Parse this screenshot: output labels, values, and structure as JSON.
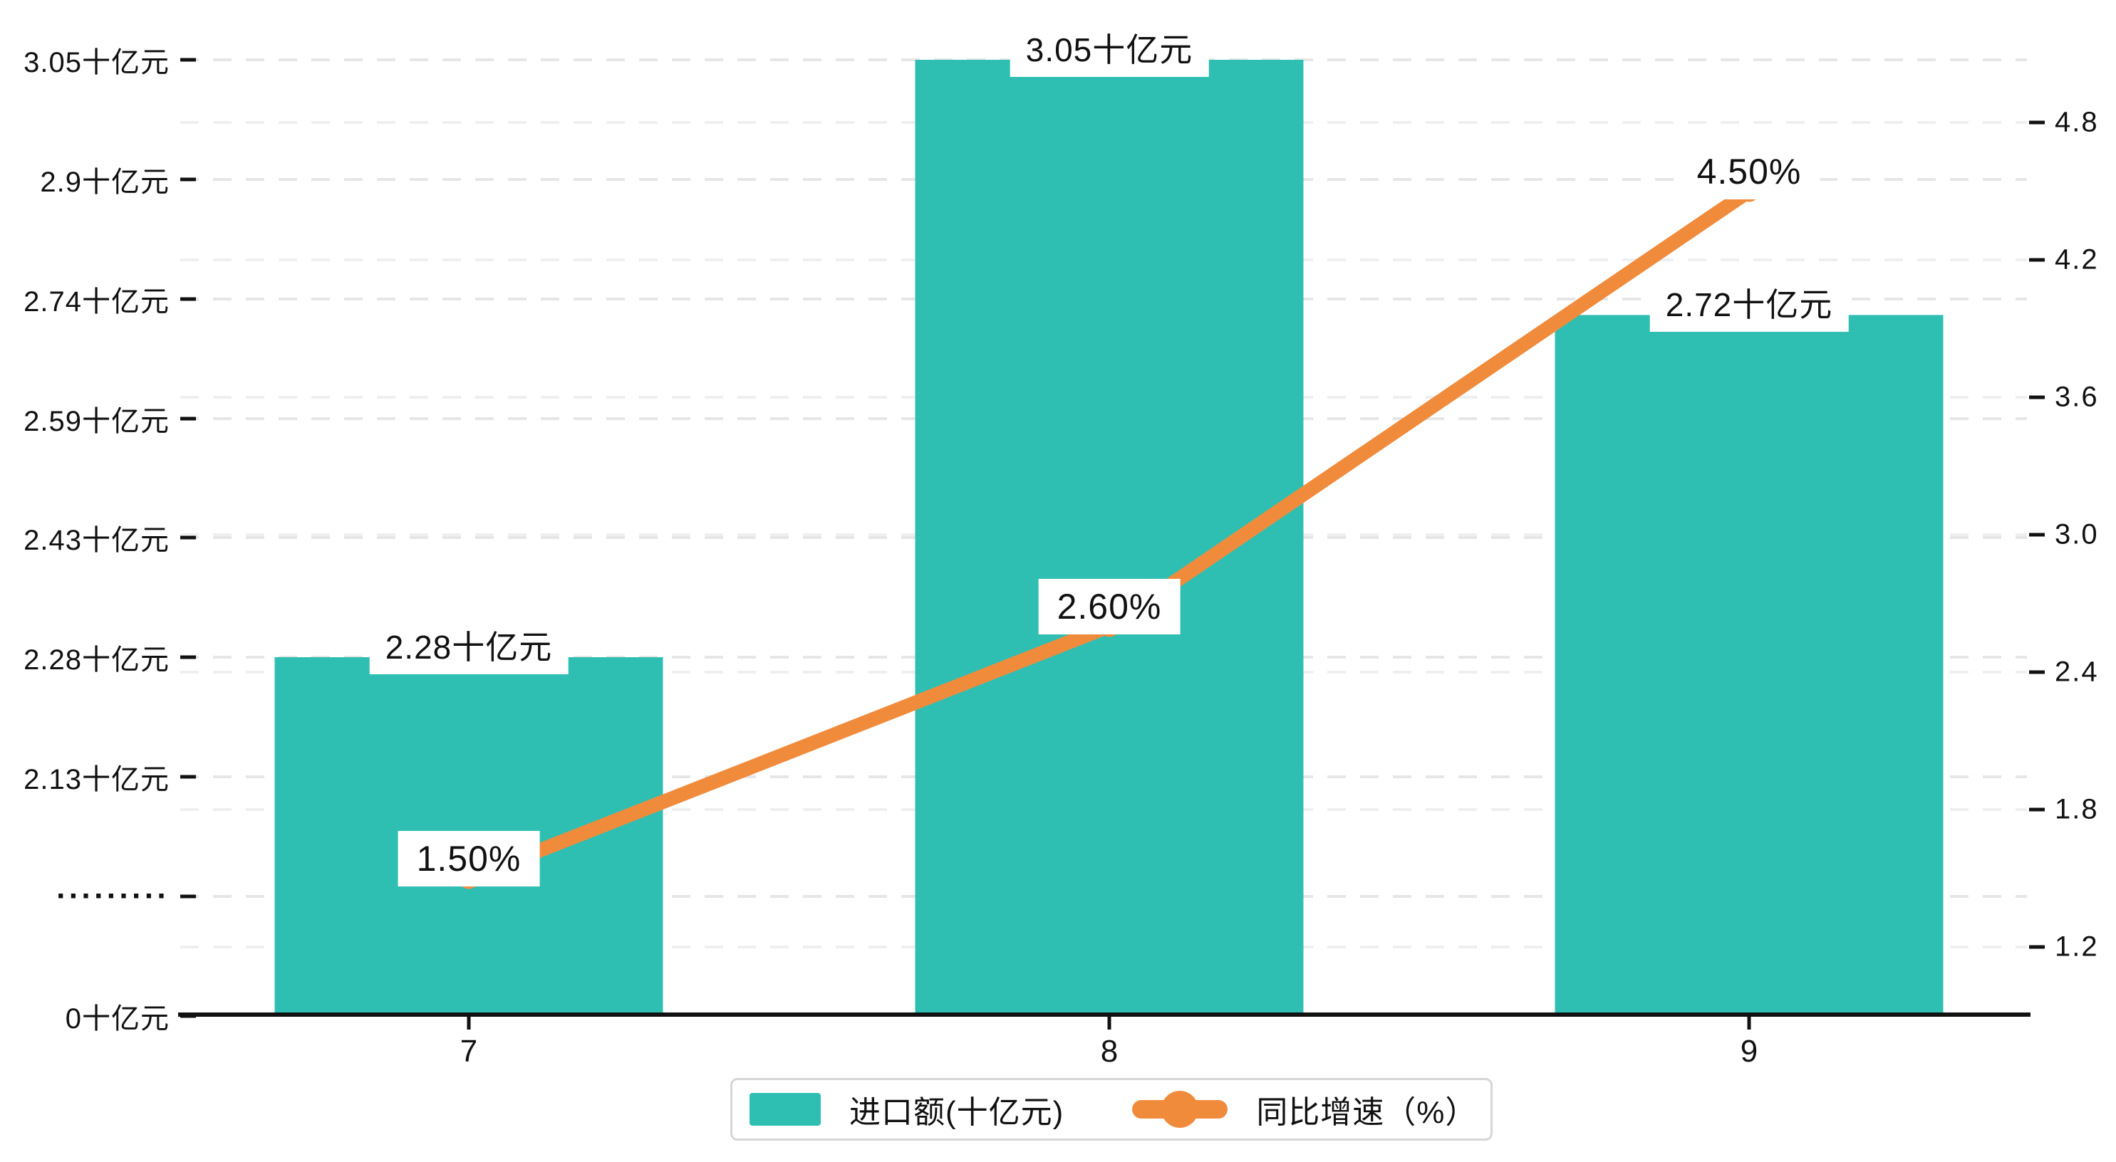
{
  "chart_data": {
    "type": "bar",
    "categories": [
      "7",
      "8",
      "9"
    ],
    "series": [
      {
        "name": "进口额(十亿元)",
        "type": "bar",
        "axis": "left",
        "color": "#2FBFB2",
        "values": [
          2.28,
          3.05,
          2.72
        ],
        "labels": [
          "2.28十亿元",
          "3.05十亿元",
          "2.72十亿元"
        ]
      },
      {
        "name": "同比增速（%）",
        "type": "line",
        "axis": "right",
        "color": "#F08B3C",
        "values": [
          1.5,
          2.6,
          4.5
        ],
        "labels": [
          "1.50%",
          "2.60%",
          "4.50%"
        ]
      }
    ],
    "x_axis": {
      "tick_labels": [
        "7",
        "8",
        "9"
      ]
    },
    "left_axis": {
      "broken_axis": true,
      "tick_labels": [
        "0十亿元",
        "·········",
        "2.13十亿元",
        "2.28十亿元",
        "2.43十亿元",
        "2.59十亿元",
        "2.74十亿元",
        "2.9十亿元",
        "3.05十亿元"
      ],
      "tick_values": [
        0,
        null,
        2.13,
        2.28,
        2.43,
        2.59,
        2.74,
        2.9,
        3.05
      ]
    },
    "right_axis": {
      "tick_labels": [
        "1.2",
        "1.8",
        "2.4",
        "3.0",
        "3.6",
        "4.2",
        "4.8"
      ],
      "min": 1.2,
      "max": 4.8
    },
    "legend": {
      "position": "bottom",
      "items": [
        {
          "label": "进口额(十亿元)",
          "color": "#2FBFB2",
          "symbol": "rect"
        },
        {
          "label": "同比增速（%）",
          "color": "#F08B3C",
          "symbol": "line-dot"
        }
      ]
    },
    "grid": {
      "dashed": true,
      "gridline_color": "#e6e6e6",
      "gridline_color_right": "#efefef"
    },
    "colors": {
      "bar": "#2FBFB2",
      "line": "#F08B3C",
      "text": "#111111",
      "axis": "#111111",
      "legend_border": "#d6d6d6",
      "background": "#ffffff"
    }
  }
}
